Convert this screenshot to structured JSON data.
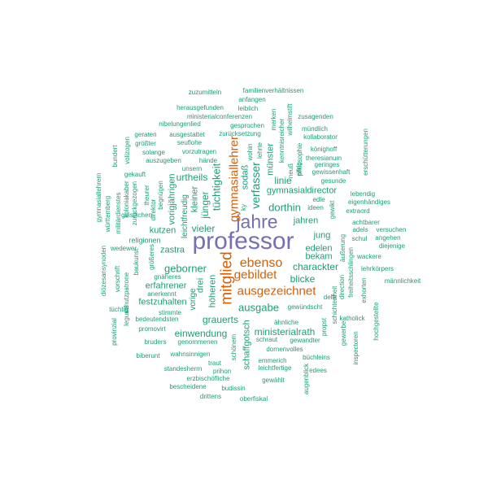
{
  "colors": {
    "top": "#7570b3",
    "high": "#d95f02",
    "low": "#1b9e77"
  },
  "words": [
    "professor",
    "jahre",
    "mitglied",
    "gymnasiallehrer",
    "ebenso",
    "ausgezeichnet",
    "gebildet",
    "tüchtigkeit",
    "verfasser",
    "dorthin",
    "ausgabe",
    "geborner",
    "kutzen",
    "vieler",
    "urtheils",
    "jünger",
    "kleiner",
    "leichtfreudig",
    "vorigjährigen",
    "zastra",
    "drei",
    "höheren",
    "vorige",
    "linie",
    "gymnasialdirector",
    "münster",
    "sodaß",
    "charackter",
    "blicke",
    "edelen",
    "bekam",
    "jung",
    "jahren",
    "grauerts",
    "einwendung",
    "festzuhalten",
    "erfahrener",
    "ministerialrath",
    "schaffgotsch",
    "religionen",
    "zuzumitteln",
    "familienverhältnissen",
    "anfangen",
    "herausgefunden",
    "leiblich",
    "ministerialconferenzen",
    "zusagenden",
    "nibelungenlied",
    "gesprochen",
    "mündlich",
    "geraten",
    "ausgestattet",
    "zurücksetzung",
    "kollaborator",
    "größter",
    "seuflohe",
    "könighoff",
    "bundert",
    "vorzutragen",
    "theresianum",
    "solange",
    "auszugeben",
    "hände",
    "geringes",
    "unsern",
    "gewissenhaft",
    "gekauft",
    "lebendig",
    "eigenhändiges",
    "extraord",
    "edle",
    "ideen",
    "achtbarer",
    "adels",
    "versuchen",
    "angehen",
    "diejenige",
    "schul",
    "wackere",
    "lehrkörpers",
    "männlichkeit",
    "gymnasiallehrern",
    "württemberg",
    "geistlichen",
    "wedewer",
    "gnäheres",
    "baukunst",
    "anerkennt",
    "tüchtig",
    "stimmte",
    "promovirt",
    "bedeutendsten",
    "bruders",
    "genommenen",
    "wahnsinnigen",
    "biberunt",
    "ähnliche",
    "gewündscht",
    "katholick",
    "gewandter",
    "büchleins",
    "dornenvolles",
    "emmerich",
    "leichtfertige",
    "edees",
    "gewählt",
    "standesherrn",
    "prihon",
    "traut",
    "erzbischöfliche",
    "bescheidene",
    "budissin",
    "drittens",
    "oberfiskal",
    "schraut",
    "wohin",
    "lehrte",
    "kenntnisreicher",
    "neuß",
    "wilhelmstift",
    "merken",
    "philosophie",
    "theurer",
    "direktor",
    "begnügen",
    "zurückgezogen",
    "volizogen",
    "koloniakaber",
    "militärdienstes",
    "diözesansynoden",
    "vorschrift",
    "schutzpatrone",
    "provinzial",
    "größeres",
    "schönem",
    "propst",
    "schichtenheit",
    "äußerung",
    "freiheitsschlingen",
    "direction",
    "gewerbe",
    "exhorten",
    "inspectoren",
    "hochgestellte",
    "erschütterungen",
    "gewikt",
    "augenblick",
    "ky",
    "eifrig",
    "legums",
    "dellk",
    "gesunde"
  ]
}
